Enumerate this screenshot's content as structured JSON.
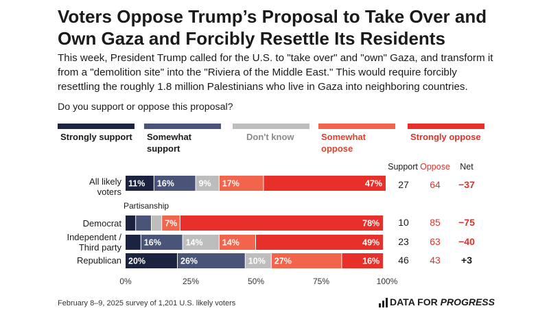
{
  "title": "Voters Oppose Trump’s Proposal to Take Over and Own Gaza and Forcibly Resettle Its Residents",
  "subtitle": "This week, President Trump called for the U.S. to \"take over\" and \"own\" Gaza, and transform it from a \"demolition site\" into the \"Riviera of the Middle East.\" This would require forcibly resettling the roughly 1.8 million Palestinians who live in Gaza into neighboring countries.",
  "question": "Do you support or oppose this proposal?",
  "legend": [
    {
      "label": "Strongly support",
      "color": "#1c2340",
      "text_color": "#1a1a1a"
    },
    {
      "label": "Somewhat support",
      "color": "#4a5478",
      "text_color": "#1a1a1a"
    },
    {
      "label": "Don't know",
      "color": "#bdbdbd",
      "text_color": "#8a8a8a"
    },
    {
      "label": "Somewhat oppose",
      "color": "#f2644c",
      "text_color": "#e0402a"
    },
    {
      "label": "Strongly oppose",
      "color": "#e8302a",
      "text_color": "#e0302a"
    }
  ],
  "columns": {
    "support": "Support",
    "oppose": "Oppose",
    "net": "Net"
  },
  "section_label": "Partisanship",
  "chart_data": {
    "type": "bar",
    "orientation": "horizontal-stacked",
    "categories": [
      "All likely voters",
      "Democrat",
      "Independent / Third party",
      "Republican"
    ],
    "series": [
      {
        "name": "Strongly support",
        "values": [
          11,
          4,
          6,
          20
        ],
        "labels": [
          "11%",
          "",
          "",
          "20%"
        ]
      },
      {
        "name": "Somewhat support",
        "values": [
          16,
          6,
          16,
          26
        ],
        "labels": [
          "16%",
          "",
          "16%",
          "26%"
        ]
      },
      {
        "name": "Don't know",
        "values": [
          9,
          4,
          14,
          10
        ],
        "labels": [
          "9%",
          "",
          "14%",
          "10%"
        ]
      },
      {
        "name": "Somewhat oppose",
        "values": [
          17,
          7,
          14,
          27
        ],
        "labels": [
          "17%",
          "7%",
          "14%",
          "27%"
        ]
      },
      {
        "name": "Strongly oppose",
        "values": [
          47,
          78,
          49,
          16
        ],
        "labels": [
          "47%",
          "78%",
          "49%",
          "16%"
        ]
      }
    ],
    "xlim": [
      0,
      100
    ],
    "x_ticks": [
      "0%",
      "25%",
      "50%",
      "75%",
      "100%"
    ],
    "totals": {
      "support": [
        "27",
        "10",
        "23",
        "46"
      ],
      "oppose": [
        "64",
        "85",
        "63",
        "43"
      ],
      "net": [
        "−37",
        "−75",
        "−40",
        "+3"
      ]
    }
  },
  "footnote": "February 8–9, 2025 survey of 1,201 U.S. likely voters",
  "brand": {
    "part1": "DATA FOR ",
    "part2": "PROGRESS"
  },
  "colors": {
    "support_text": "#1a1a1a",
    "oppose_text": "#e0302a",
    "net_negative": "#e0302a",
    "net_positive": "#1a1a1a"
  }
}
